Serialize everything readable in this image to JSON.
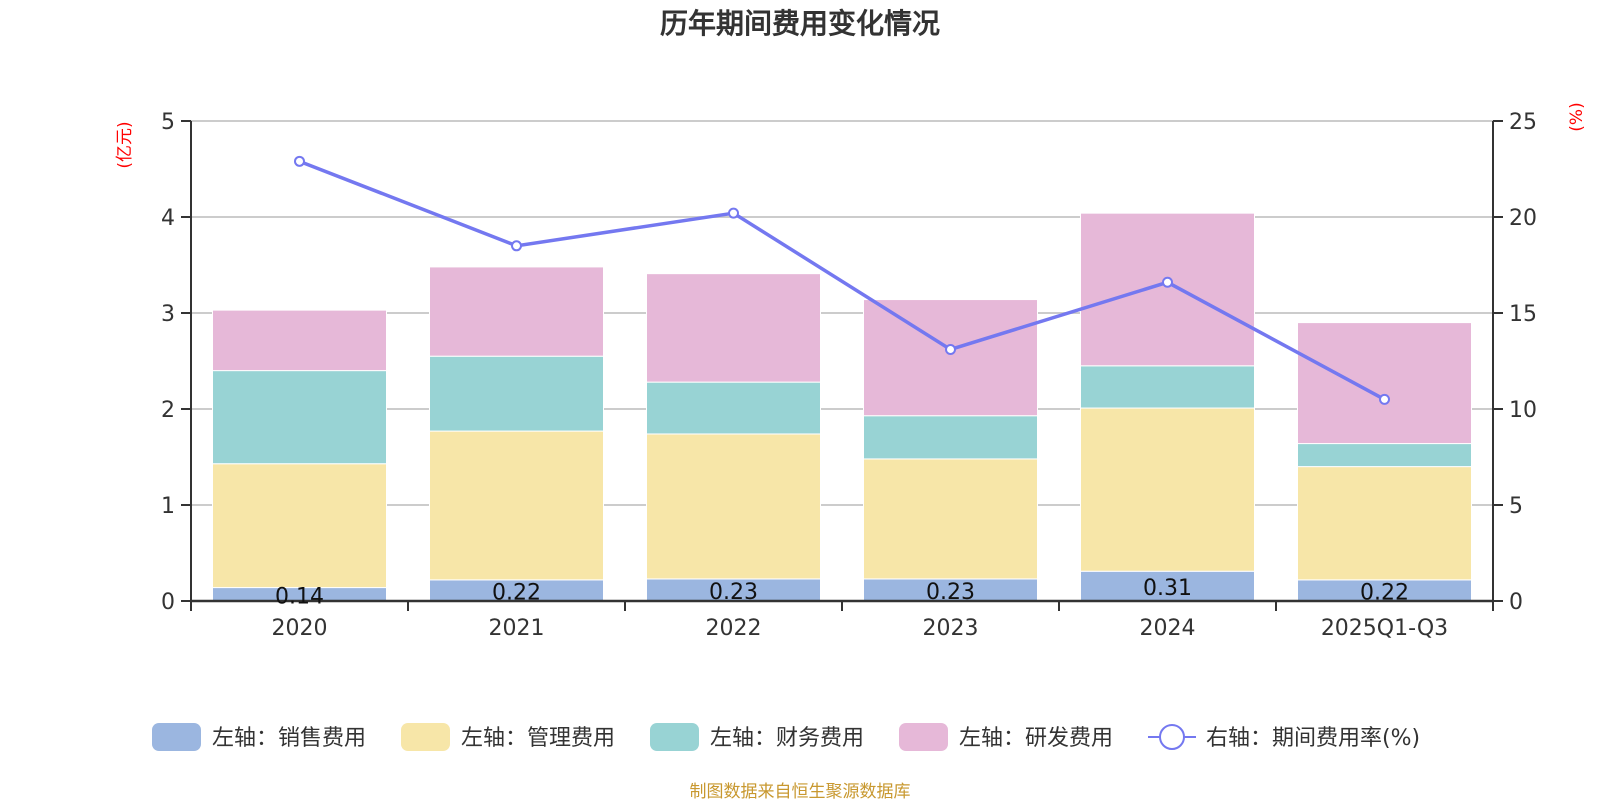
{
  "chart_data": {
    "type": "bar",
    "stacked": true,
    "title": "历年期间费用变化情况",
    "categories": [
      "2020",
      "2021",
      "2022",
      "2023",
      "2024",
      "2025Q1-Q3"
    ],
    "left_axis": {
      "label": "(亿元)",
      "min": 0,
      "max": 5,
      "ticks": [
        "0",
        "1",
        "2",
        "3",
        "4",
        "5"
      ]
    },
    "right_axis": {
      "label": "(%)",
      "min": 0,
      "max": 25,
      "ticks": [
        "0",
        "5",
        "10",
        "15",
        "20",
        "25"
      ]
    },
    "grid": true,
    "legend_position": "bottom",
    "series": [
      {
        "name": "左轴：销售费用",
        "axis": "left",
        "kind": "bar",
        "color": "#9bb6e0",
        "values": [
          0.14,
          0.22,
          0.23,
          0.23,
          0.31,
          0.22
        ],
        "labels": [
          "0.14",
          "0.22",
          "0.23",
          "0.23",
          "0.31",
          "0.22"
        ]
      },
      {
        "name": "左轴：管理费用",
        "axis": "left",
        "kind": "bar",
        "color": "#f7e6a8",
        "values": [
          1.29,
          1.55,
          1.51,
          1.25,
          1.7,
          1.18
        ]
      },
      {
        "name": "左轴：财务费用",
        "axis": "left",
        "kind": "bar",
        "color": "#98d3d4",
        "values": [
          0.97,
          0.78,
          0.54,
          0.45,
          0.44,
          0.24
        ]
      },
      {
        "name": "左轴：研发费用",
        "axis": "left",
        "kind": "bar",
        "color": "#e6b8d8",
        "values": [
          0.63,
          0.93,
          1.13,
          1.21,
          1.59,
          1.26
        ]
      },
      {
        "name": "右轴：期间费用率(%)",
        "axis": "right",
        "kind": "line",
        "color": "#7478f0",
        "values": [
          22.9,
          18.5,
          20.2,
          13.1,
          16.6,
          10.5
        ]
      }
    ],
    "source": "制图数据来自恒生聚源数据库"
  }
}
